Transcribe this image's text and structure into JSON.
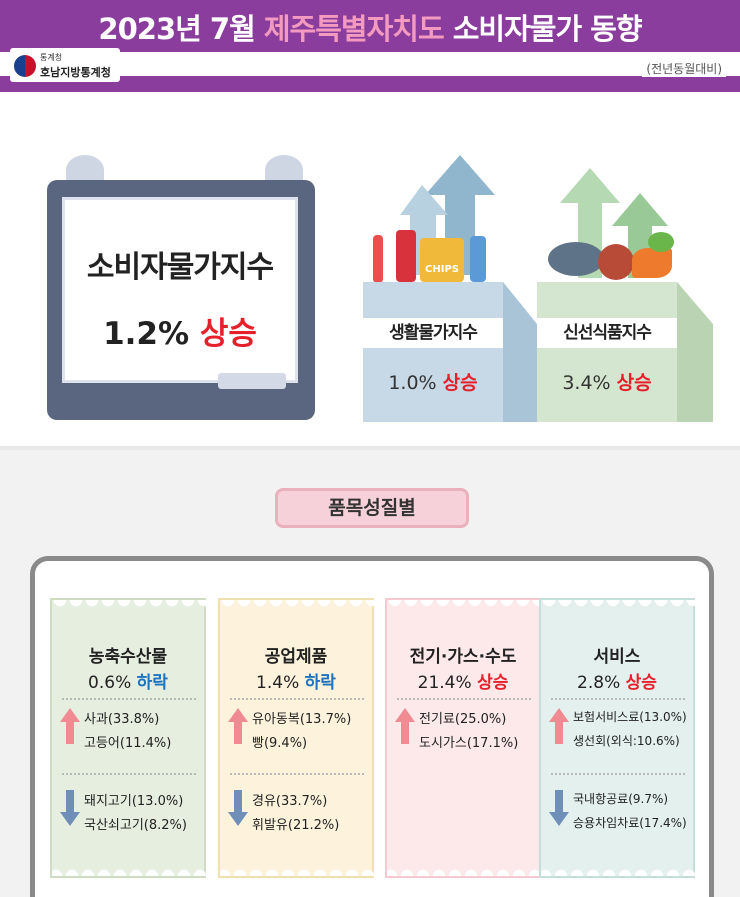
{
  "header": {
    "title_prefix": "2023년 7월 ",
    "title_region": "제주특별자치도",
    "title_suffix": " 소비자물가 동향",
    "subtitle": "(전년동월대비)",
    "org_sub": "통계청",
    "org_name": "호남지방통계청"
  },
  "board": {
    "label": "소비자물가지수",
    "value": "1.2%",
    "direction": "상승"
  },
  "bags": [
    {
      "label": "생활물가지수",
      "value": "1.0%",
      "direction": "상승"
    },
    {
      "label": "신선식품지수",
      "value": "3.4%",
      "direction": "상승"
    }
  ],
  "bag_item_text": "CHIPS",
  "section": {
    "title": "품목성질별"
  },
  "categories": [
    {
      "name": "농축수산물",
      "value": "0.6%",
      "direction": "하락",
      "up_items": [
        "사과(33.8%)",
        "고등어(11.4%)"
      ],
      "down_items": [
        "돼지고기(13.0%)",
        "국산쇠고기(8.2%)"
      ]
    },
    {
      "name": "공업제품",
      "value": "1.4%",
      "direction": "하락",
      "up_items": [
        "유아동복(13.7%)",
        "빵(9.4%)"
      ],
      "down_items": [
        "경유(33.7%)",
        "휘발유(21.2%)"
      ]
    },
    {
      "name": "전기·가스·수도",
      "value": "21.4%",
      "direction": "상승",
      "up_items": [
        "전기료(25.0%)",
        "도시가스(17.1%)"
      ],
      "down_items": []
    },
    {
      "name": "서비스",
      "value": "2.8%",
      "direction": "상승",
      "up_items": [
        "보험서비스료(13.0%)",
        "생선회(외식:10.6%)"
      ],
      "down_items": [
        "국내항공료(9.7%)",
        "승용차임차료(17.4%)"
      ]
    }
  ],
  "colors": {
    "header": "#8a3d9c",
    "title_highlight": "#f39ac0",
    "up": "#e6202b",
    "down": "#1d73c2",
    "up_arrow": "#f08a93",
    "down_arrow": "#6f8fb8"
  }
}
